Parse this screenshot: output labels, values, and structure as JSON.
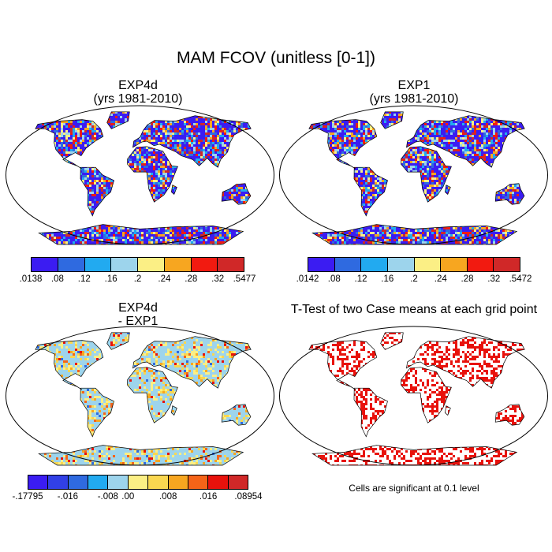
{
  "title": "MAM FCOV (unitless [0-1])",
  "panels": [
    {
      "id": "exp4d",
      "title_line1": "EXP4d",
      "title_line2": "(yrs 1981-2010)",
      "colors": [
        "#3b1cf2",
        "#2f6ae0",
        "#22aaf0",
        "#9dd4ec",
        "#fbef85",
        "#f7a620",
        "#f21a10",
        "#d02828"
      ],
      "ticks": [
        ".0138",
        ".08",
        ".12",
        ".16",
        ".2",
        ".24",
        ".28",
        ".32",
        ".5477"
      ]
    },
    {
      "id": "exp1",
      "title_line1": "EXP1",
      "title_line2": "(yrs 1981-2010)",
      "colors": [
        "#3b1cf2",
        "#2f6ae0",
        "#22aaf0",
        "#9dd4ec",
        "#fbef85",
        "#f7a620",
        "#f21a10",
        "#d02828"
      ],
      "ticks": [
        ".0142",
        ".08",
        ".12",
        ".16",
        ".2",
        ".24",
        ".28",
        ".32",
        ".5472"
      ]
    },
    {
      "id": "diff",
      "title_line1": "EXP4d",
      "title_line2": "- EXP1",
      "colors": [
        "#3b1cf2",
        "#3140e6",
        "#2f6ae0",
        "#22aaf0",
        "#9dd4ec",
        "#fbef85",
        "#f9d750",
        "#f7a620",
        "#f56418",
        "#e8120c",
        "#d02828"
      ],
      "ticks": [
        "-.17795",
        "-.016",
        "-.008",
        ".00",
        ".008",
        ".016",
        ".08954"
      ]
    },
    {
      "id": "ttest",
      "title_line1": "T-Test of two Case means at each grid point",
      "title_line2": "",
      "note": "Cells are significant at 0.1 level"
    }
  ]
}
